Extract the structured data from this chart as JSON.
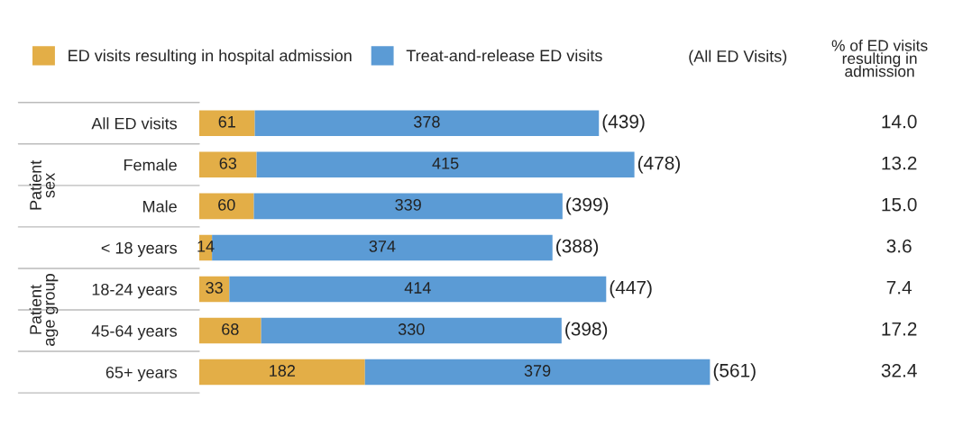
{
  "chart_data": {
    "type": "bar",
    "orientation": "horizontal",
    "stacked": true,
    "tick_labels": "y",
    "data_labels": true,
    "legend": "top left",
    "categories": [
      "All ED visits",
      "Female",
      "Male",
      "< 18 years",
      "18-24 years",
      "45-64 years",
      "65+ years"
    ],
    "series": [
      {
        "name": "ED visits resulting in hospital admission",
        "color": "#e3ae47",
        "values": [
          61,
          63,
          60,
          14,
          33,
          68,
          182
        ]
      },
      {
        "name": "Treat-and-release ED visits",
        "color": "#5b9bd5",
        "values": [
          378,
          415,
          339,
          374,
          414,
          330,
          379
        ]
      }
    ],
    "totals": [
      "(439)",
      "(478)",
      "(399)",
      "(388)",
      "(447)",
      "(398)",
      "(561)"
    ],
    "annotations": [
      "(All ED Visits)",
      "% of ED visits\nresulting in\nadmission",
      "Patient\nsex",
      "Patient\nage group",
      "14.0",
      "13.2",
      "15.0",
      "3.6",
      "7.4",
      "17.2",
      "32.4"
    ]
  }
}
